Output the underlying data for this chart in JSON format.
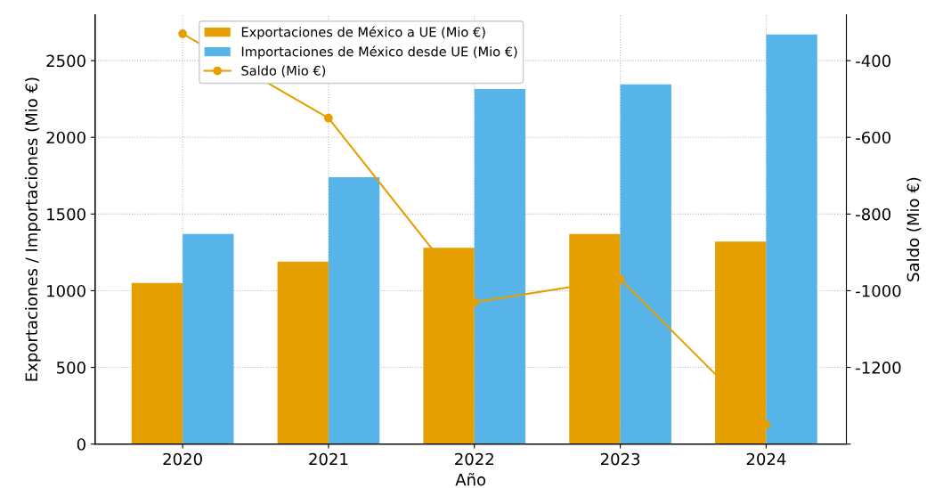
{
  "chart_data": {
    "type": "bar",
    "xlabel": "Año",
    "ylabel": "Exportaciones / Importaciones (Mio €)",
    "y2label": "Saldo (Mio €)",
    "categories": [
      "2020",
      "2021",
      "2022",
      "2023",
      "2024"
    ],
    "series": [
      {
        "name": "Exportaciones de México a UE (Mio €)",
        "color": "#e69f00",
        "values": [
          1050,
          1190,
          1280,
          1370,
          1320
        ]
      },
      {
        "name": "Importaciones de México desde UE (Mio €)",
        "color": "#56b4e9",
        "values": [
          1370,
          1740,
          2315,
          2345,
          2670
        ]
      },
      {
        "name": "Saldo (Mio €)",
        "type": "line",
        "axis": "y2",
        "color": "#e69f00",
        "marker": "circle",
        "values": [
          -330,
          -550,
          -1030,
          -970,
          -1350
        ]
      }
    ],
    "ylim": [
      0,
      2800
    ],
    "yticks": [
      0,
      500,
      1000,
      1500,
      2000,
      2500
    ],
    "y2lim": [
      -1400,
      -280
    ],
    "y2ticks": [
      {
        "value": -1400,
        "label": null
      },
      -1200,
      -1000,
      -800,
      -600,
      -400
    ],
    "grid": true,
    "legend": "top left"
  }
}
